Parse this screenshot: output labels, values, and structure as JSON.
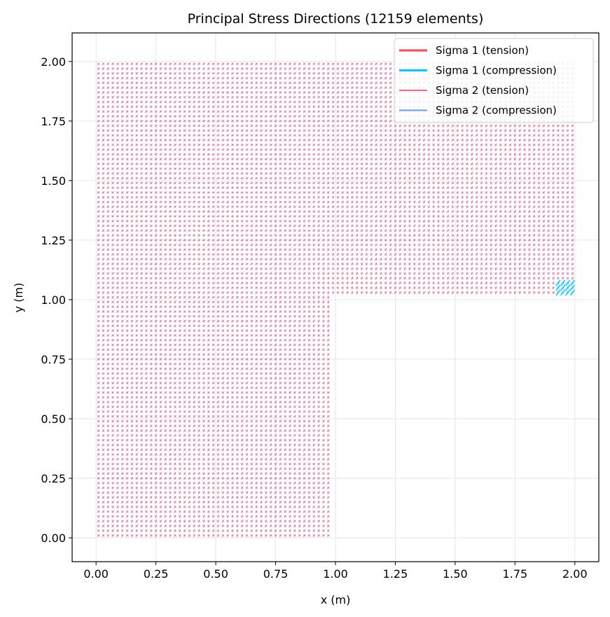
{
  "chart_data": {
    "type": "quiver",
    "title": "Principal Stress Directions (12159 elements)",
    "xlabel": "x (m)",
    "ylabel": "y (m)",
    "xlim": [
      -0.1,
      2.1
    ],
    "ylim": [
      -0.1,
      2.12
    ],
    "xticks": [
      "0.00",
      "0.25",
      "0.50",
      "0.75",
      "1.00",
      "1.25",
      "1.50",
      "1.75",
      "2.00"
    ],
    "yticks": [
      "0.00",
      "0.25",
      "0.50",
      "0.75",
      "1.00",
      "1.25",
      "1.50",
      "1.75",
      "2.00"
    ],
    "xtick_values": [
      0,
      0.25,
      0.5,
      0.75,
      1.0,
      1.25,
      1.5,
      1.75,
      2.0
    ],
    "ytick_values": [
      0,
      0.25,
      0.5,
      0.75,
      1.0,
      1.25,
      1.5,
      1.75,
      2.0
    ],
    "grid": true,
    "legend_position": "top-right",
    "domain_shape": "L-shaped region: x 0–2, y 1–2 plus x 0–1, y 0–1",
    "element_count": 12159,
    "series": [
      {
        "name": "Sigma 1 (tension)",
        "color": "#ff4455"
      },
      {
        "name": "Sigma 1 (compression)",
        "color": "#00ccff"
      },
      {
        "name": "Sigma 2 (tension)",
        "color": "#ff6677"
      },
      {
        "name": "Sigma 2 (compression)",
        "color": "#6699ff"
      }
    ]
  }
}
